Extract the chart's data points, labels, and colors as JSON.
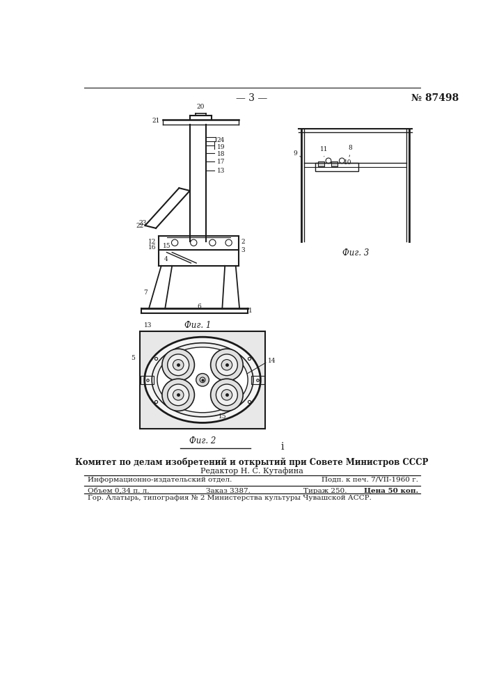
{
  "page_width": 7.07,
  "page_height": 10.0,
  "bg_color": "#ffffff",
  "header_page_num": "— 3 —",
  "header_patent_num": "№ 87498",
  "fig1_caption": "Фиг. 1",
  "fig2_caption": "Фиг. 2",
  "fig3_caption": "Фиг. 3",
  "footer_main": "Комитет по делам изобретений и открытий при Совете Министров СССР",
  "footer_editor": "Редактор Н. С. Кутафина",
  "footer_line1_left": "Информационно-издательский отдел.",
  "footer_line1_right": "Подп. к печ. 7/VII-1960 г.",
  "footer_line2_left": "Объем 0,34 п. л.",
  "footer_line2_mid": "Заказ 3387.",
  "footer_line2_mid2": "Тираж 250.",
  "footer_line2_right": "Цена 50 коп.",
  "footer_line3": "Гор. Алатырь, типография № 2 Министерства культуры Чувашской АССР.",
  "line_color": "#1a1a1a",
  "text_color": "#1a1a1a",
  "small_fs": 6.5,
  "caption_fs": 8.5,
  "footer_fs": 7.5
}
